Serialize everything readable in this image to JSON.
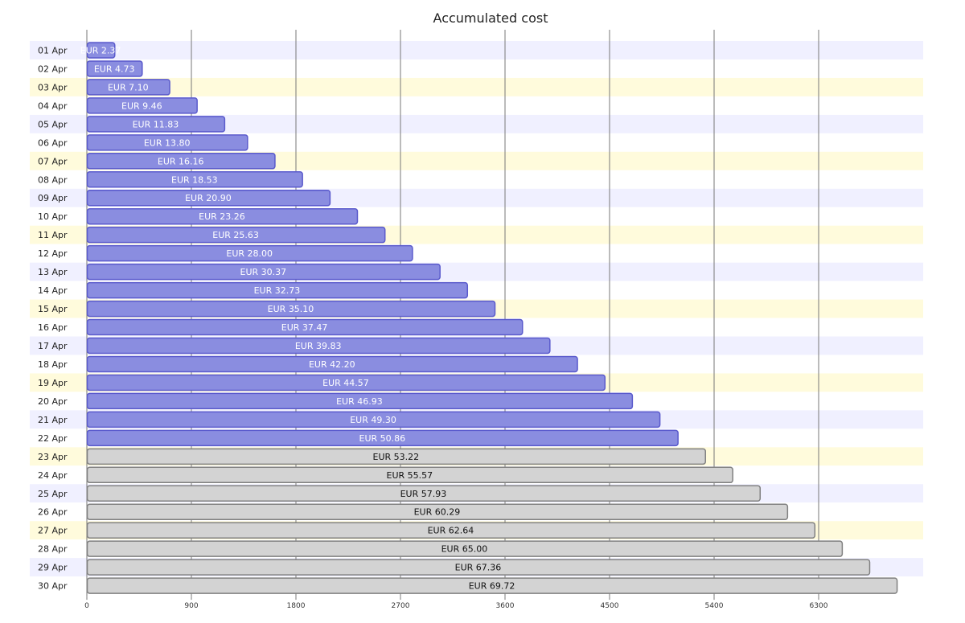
{
  "chart_data": {
    "type": "bar",
    "orientation": "horizontal",
    "title": "Accumulated cost",
    "xlabel": "",
    "ylabel": "",
    "xlim": [
      0,
      7200
    ],
    "xticks": [
      0,
      900,
      1800,
      2700,
      3600,
      4500,
      5400,
      6300
    ],
    "grid": "vertical",
    "categories": [
      "01 Apr",
      "02 Apr",
      "03 Apr",
      "04 Apr",
      "05 Apr",
      "06 Apr",
      "07 Apr",
      "08 Apr",
      "09 Apr",
      "10 Apr",
      "11 Apr",
      "12 Apr",
      "13 Apr",
      "14 Apr",
      "15 Apr",
      "16 Apr",
      "17 Apr",
      "18 Apr",
      "19 Apr",
      "20 Apr",
      "21 Apr",
      "22 Apr",
      "23 Apr",
      "24 Apr",
      "25 Apr",
      "26 Apr",
      "27 Apr",
      "28 Apr",
      "29 Apr",
      "30 Apr"
    ],
    "values": [
      237,
      473,
      710,
      946,
      1183,
      1380,
      1616,
      1853,
      2090,
      2326,
      2563,
      2800,
      3037,
      3273,
      3510,
      3747,
      3983,
      4220,
      4457,
      4693,
      4930,
      5086,
      5322,
      5557,
      5793,
      6029,
      6264,
      6500,
      6736,
      6972
    ],
    "labels": [
      "EUR 2.37",
      "EUR 4.73",
      "EUR 7.10",
      "EUR 9.46",
      "EUR 11.83",
      "EUR 13.80",
      "EUR 16.16",
      "EUR 18.53",
      "EUR 20.90",
      "EUR 23.26",
      "EUR 25.63",
      "EUR 28.00",
      "EUR 30.37",
      "EUR 32.73",
      "EUR 35.10",
      "EUR 37.47",
      "EUR 39.83",
      "EUR 42.20",
      "EUR 44.57",
      "EUR 46.93",
      "EUR 49.30",
      "EUR 50.86",
      "EUR 53.22",
      "EUR 55.57",
      "EUR 57.93",
      "EUR 60.29",
      "EUR 62.64",
      "EUR 65.00",
      "EUR 67.36",
      "EUR 69.72"
    ],
    "series_status": [
      "actual",
      "actual",
      "actual",
      "actual",
      "actual",
      "actual",
      "actual",
      "actual",
      "actual",
      "actual",
      "actual",
      "actual",
      "actual",
      "actual",
      "actual",
      "actual",
      "actual",
      "actual",
      "actual",
      "actual",
      "actual",
      "actual",
      "forecast",
      "forecast",
      "forecast",
      "forecast",
      "forecast",
      "forecast",
      "forecast",
      "forecast"
    ],
    "colors": {
      "actual_fill": "#8a8de0",
      "actual_stroke": "#5a5acc",
      "actual_text": "#ffffff",
      "forecast_fill": "#d3d3d3",
      "forecast_stroke": "#808080",
      "forecast_text": "#111111",
      "band_a": "#f0f0ff",
      "band_b": "#ffffff",
      "band_c": "#fffbdc",
      "grid": "#777777"
    }
  }
}
